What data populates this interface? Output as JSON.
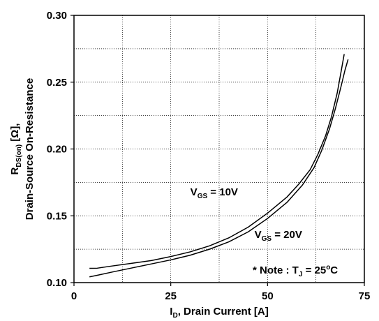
{
  "chart_data": {
    "type": "line",
    "title": "",
    "xlabel": {
      "main": "I",
      "sub": "D",
      "rest": ", Drain Current [A]"
    },
    "ylabel": {
      "line1_main": "R",
      "line1_sub": "DS(on)",
      "line1_rest": " [Ω],",
      "line2": "Drain-Source On-Resistance"
    },
    "xlim": [
      0,
      75
    ],
    "ylim": [
      0.1,
      0.3
    ],
    "xticks": [
      0,
      25,
      50,
      75
    ],
    "xtick_labels": [
      "0",
      "25",
      "50",
      "75"
    ],
    "yticks": [
      0.1,
      0.15,
      0.2,
      0.25,
      0.3
    ],
    "ytick_labels": [
      "0.10",
      "0.15",
      "0.20",
      "0.25",
      "0.30"
    ],
    "grid": true,
    "minor_grid": true,
    "series": [
      {
        "name": {
          "main": "V",
          "sub": "GS",
          "rest": " = 10V"
        },
        "x": [
          4,
          6,
          10,
          15,
          20,
          25,
          30,
          35,
          40,
          45,
          50,
          55,
          58,
          61,
          63,
          65,
          66.5,
          68,
          69,
          69.8
        ],
        "y": [
          0.1107,
          0.1108,
          0.1125,
          0.1145,
          0.1165,
          0.1195,
          0.123,
          0.1275,
          0.1335,
          0.1415,
          0.152,
          0.164,
          0.1735,
          0.1845,
          0.196,
          0.21,
          0.224,
          0.242,
          0.258,
          0.271
        ]
      },
      {
        "name": {
          "main": "V",
          "sub": "GS",
          "rest": " = 20V"
        },
        "x": [
          4,
          6,
          10,
          15,
          20,
          25,
          30,
          35,
          40,
          45,
          50,
          55,
          59,
          62,
          64,
          66,
          67.5,
          69,
          70,
          70.8
        ],
        "y": [
          0.1043,
          0.1055,
          0.108,
          0.111,
          0.114,
          0.117,
          0.1205,
          0.125,
          0.1305,
          0.138,
          0.148,
          0.16,
          0.173,
          0.186,
          0.199,
          0.215,
          0.23,
          0.247,
          0.259,
          0.267
        ]
      }
    ],
    "annotations": {
      "series1_label_pos": [
        36,
        0.168
      ],
      "series2_label_pos": [
        56,
        0.136
      ],
      "note": {
        "prefix": "* Note : T",
        "sub": "J",
        "mid": " = 25",
        "sup": "o",
        "rest": "C"
      }
    }
  }
}
